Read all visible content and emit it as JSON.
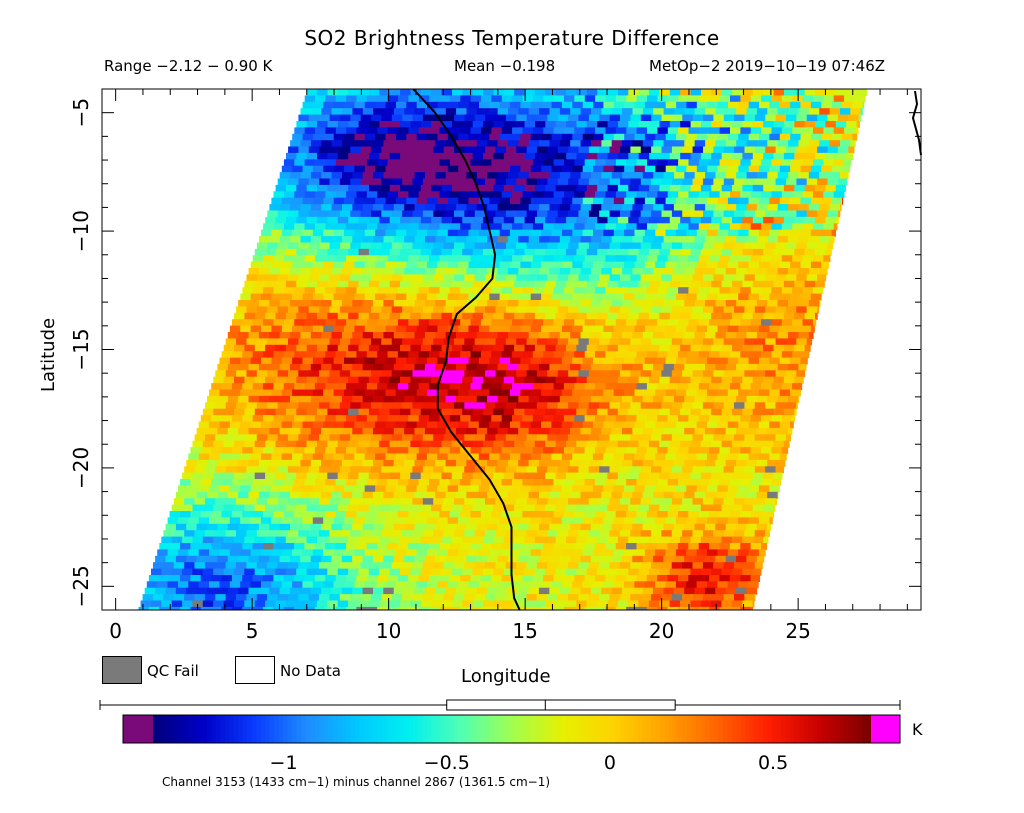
{
  "header": {
    "title": "SO2 Brightness Temperature Difference",
    "range_text": "Range −2.12 − 0.90 K",
    "mean_text": "Mean −0.198",
    "satellite_text": "MetOp−2 2019−10−19 07:46Z"
  },
  "legend": {
    "qc_fail_label": "QC Fail",
    "no_data_label": "No Data",
    "qc_fail_color": "#7a7a7a",
    "no_data_color": "#ffffff"
  },
  "colorbar": {
    "unit": "K",
    "caption": "Channel 3153 (1433 cm−1) minus channel 2867 (1361.5 cm−1)",
    "ticks": [
      {
        "value": -1,
        "label": "−1"
      },
      {
        "value": -0.5,
        "label": "−0.5"
      },
      {
        "value": 0,
        "label": "0"
      },
      {
        "value": 0.5,
        "label": "0.5"
      }
    ],
    "min": -1.4,
    "max": 0.8,
    "below_color": "#7a0a7a",
    "above_color": "#ff00ff",
    "colors": [
      "#00007a",
      "#0000c8",
      "#0a3cff",
      "#1e8cff",
      "#00c8ff",
      "#00f0f0",
      "#50ffb4",
      "#a0ff50",
      "#e6f000",
      "#ffd200",
      "#ffa000",
      "#ff6400",
      "#ff1e00",
      "#c80000",
      "#7a0000"
    ],
    "box": {
      "whisker_low": -2.12,
      "q1": -0.5,
      "median": -0.198,
      "q3": 0.2,
      "whisker_high": 0.9
    }
  },
  "chart_data": {
    "type": "heatmap",
    "title": "SO2 Brightness Temperature Difference",
    "xlabel": "Longitude",
    "ylabel": "Latitude",
    "xlim": [
      -0.5,
      29.5
    ],
    "ylim": [
      -26,
      -4
    ],
    "xticks": [
      0,
      5,
      10,
      15,
      20,
      25
    ],
    "yticks": [
      -5,
      -10,
      -15,
      -20,
      -25
    ],
    "value_unit": "K",
    "value_range": [
      -2.12,
      0.9
    ],
    "mean": -0.198,
    "swath": {
      "top_left": [
        7,
        -4
      ],
      "top_right": [
        27.5,
        -4
      ],
      "bottom_left": [
        0.8,
        -26
      ],
      "bottom_right": [
        23.3,
        -26
      ]
    },
    "coastline": [
      [
        10.9,
        -4
      ],
      [
        11.7,
        -5
      ],
      [
        12.3,
        -6
      ],
      [
        12.8,
        -7
      ],
      [
        13.2,
        -8
      ],
      [
        13.5,
        -9
      ],
      [
        13.7,
        -10
      ],
      [
        13.9,
        -11
      ],
      [
        13.8,
        -12
      ],
      [
        13.2,
        -12.8
      ],
      [
        12.5,
        -13.5
      ],
      [
        12.2,
        -14.5
      ],
      [
        12.1,
        -15.5
      ],
      [
        11.8,
        -16.5
      ],
      [
        11.8,
        -17.5
      ],
      [
        12.3,
        -18.5
      ],
      [
        13.0,
        -19.5
      ],
      [
        13.7,
        -20.5
      ],
      [
        14.2,
        -21.5
      ],
      [
        14.5,
        -22.5
      ],
      [
        14.5,
        -23.5
      ],
      [
        14.5,
        -24.5
      ],
      [
        14.6,
        -25.5
      ],
      [
        14.8,
        -26
      ]
    ],
    "anomalies": [
      {
        "name": "negative-north",
        "lon": 14.5,
        "lat": -7.5,
        "value": -1.1,
        "rx": 8,
        "ry": 4.5
      },
      {
        "name": "negative-northwest",
        "lon": 9.0,
        "lat": -6.5,
        "value": -0.6,
        "rx": 5,
        "ry": 3
      },
      {
        "name": "positive-central-west",
        "lon": 9.5,
        "lat": -15.5,
        "value": 0.65,
        "rx": 6,
        "ry": 4
      },
      {
        "name": "positive-central",
        "lon": 14.5,
        "lat": -16.5,
        "value": 0.5,
        "rx": 4,
        "ry": 3
      },
      {
        "name": "positive-southeast",
        "lon": 21.5,
        "lat": -24.5,
        "value": 0.65,
        "rx": 2.5,
        "ry": 2
      },
      {
        "name": "negative-southwest",
        "lon": 3.5,
        "lat": -25,
        "value": -0.9,
        "rx": 5,
        "ry": 3.5
      },
      {
        "name": "positive-east",
        "lon": 24,
        "lat": -14,
        "value": 0.35,
        "rx": 4,
        "ry": 5
      }
    ]
  }
}
